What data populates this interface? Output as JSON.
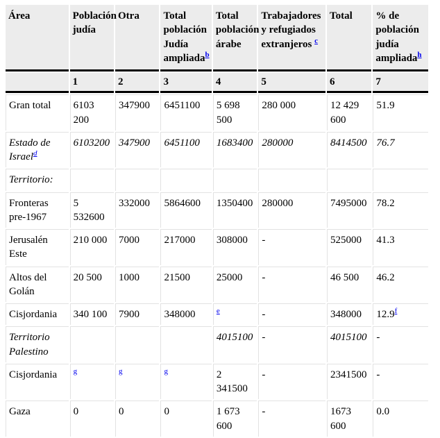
{
  "colors": {
    "header_bg": "#ececec",
    "heavy_rule": "#000000",
    "light_rule": "#e2e2e2",
    "link": "#0000ee",
    "text": "#000000"
  },
  "table": {
    "columns": [
      {
        "label": "Área",
        "sup": ""
      },
      {
        "label": "Población judía",
        "sup": ""
      },
      {
        "label": "Otra",
        "sup": ""
      },
      {
        "label": "Total población Judía ampliada",
        "sup": "b"
      },
      {
        "label": "Total población árabe",
        "sup": ""
      },
      {
        "label": "Trabajadores y refugiados extranjeros ",
        "sup": "c"
      },
      {
        "label": "Total",
        "sup": ""
      },
      {
        "label": "% de población judía ampliada",
        "sup": "h"
      }
    ],
    "number_row": [
      "",
      "1",
      "2",
      "3",
      "4",
      "5",
      "6",
      "7"
    ],
    "rows": [
      {
        "name": "gran-total",
        "italic": false,
        "cells": [
          {
            "t": "Gran total"
          },
          {
            "t": "6103 200"
          },
          {
            "t": "347900"
          },
          {
            "t": "6451100"
          },
          {
            "t": "5 698 500"
          },
          {
            "t": "280 000"
          },
          {
            "t": "12 429 600"
          },
          {
            "t": "51.9"
          }
        ]
      },
      {
        "name": "estado-de-israel",
        "italic": true,
        "cells": [
          {
            "t": "Estado de Israel",
            "sup": "d"
          },
          {
            "t": "6103200"
          },
          {
            "t": "347900"
          },
          {
            "t": "6451100"
          },
          {
            "t": "1683400"
          },
          {
            "t": "280000"
          },
          {
            "t": "8414500"
          },
          {
            "t": "76.7"
          }
        ]
      },
      {
        "name": "territorio",
        "italic": true,
        "cells": [
          {
            "t": "Territorio:"
          },
          {
            "t": ""
          },
          {
            "t": ""
          },
          {
            "t": ""
          },
          {
            "t": ""
          },
          {
            "t": ""
          },
          {
            "t": ""
          },
          {
            "t": ""
          }
        ]
      },
      {
        "name": "fronteras-pre-1967",
        "italic": false,
        "cells": [
          {
            "t": "Fronteras pre-1967"
          },
          {
            "t": "5 532600"
          },
          {
            "t": "332000"
          },
          {
            "t": "5864600"
          },
          {
            "t": "1350400"
          },
          {
            "t": "280000"
          },
          {
            "t": "7495000"
          },
          {
            "t": "78.2"
          }
        ]
      },
      {
        "name": "jerusalen-este",
        "italic": false,
        "cells": [
          {
            "t": "Jerusalén Este"
          },
          {
            "t": "210 000"
          },
          {
            "t": "7000"
          },
          {
            "t": "217000"
          },
          {
            "t": "308000"
          },
          {
            "t": "-"
          },
          {
            "t": "525000"
          },
          {
            "t": "41.3"
          }
        ]
      },
      {
        "name": "altos-del-golan",
        "italic": false,
        "cells": [
          {
            "t": "Altos del Golán"
          },
          {
            "t": "20 500"
          },
          {
            "t": "1000"
          },
          {
            "t": "21500"
          },
          {
            "t": "25000"
          },
          {
            "t": "-"
          },
          {
            "t": "46 500"
          },
          {
            "t": "46.2"
          }
        ]
      },
      {
        "name": "cisjordania",
        "italic": false,
        "cells": [
          {
            "t": "Cisjordania"
          },
          {
            "t": "340 100"
          },
          {
            "t": "7900"
          },
          {
            "t": "348000"
          },
          {
            "sup": "e"
          },
          {
            "t": "-"
          },
          {
            "t": "348000"
          },
          {
            "t": "12.9",
            "sup": "f"
          }
        ]
      },
      {
        "name": "territorio-palestino",
        "italic": true,
        "cells": [
          {
            "t": "Territorio Palestino"
          },
          {
            "t": ""
          },
          {
            "t": ""
          },
          {
            "t": ""
          },
          {
            "t": "4015100"
          },
          {
            "t": "-"
          },
          {
            "t": "4015100"
          },
          {
            "t": "-"
          }
        ]
      },
      {
        "name": "cisjordania-2",
        "italic": false,
        "cells": [
          {
            "t": "Cisjordania"
          },
          {
            "sup": "g"
          },
          {
            "sup": "g"
          },
          {
            "sup": "g"
          },
          {
            "t": "2 341500"
          },
          {
            "t": "-"
          },
          {
            "t": "2341500"
          },
          {
            "t": "-"
          }
        ]
      },
      {
        "name": "gaza",
        "italic": false,
        "cells": [
          {
            "t": "Gaza"
          },
          {
            "t": "0"
          },
          {
            "t": "0"
          },
          {
            "t": "0"
          },
          {
            "t": "1 673 600"
          },
          {
            "t": "-"
          },
          {
            "t": "1673 600"
          },
          {
            "t": "0.0"
          }
        ]
      }
    ]
  }
}
